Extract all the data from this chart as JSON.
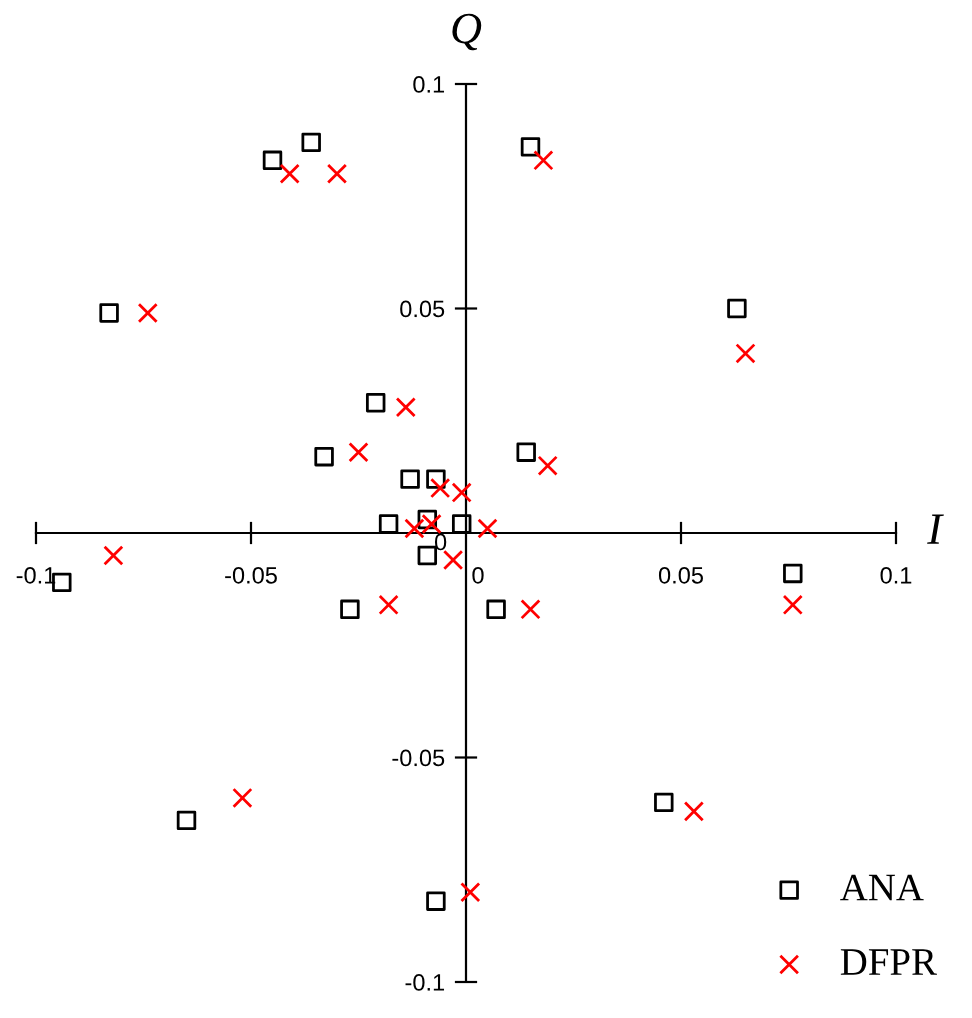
{
  "chart_data": {
    "type": "scatter",
    "xlabel": "I",
    "ylabel": "Q",
    "xlim": [
      -0.1,
      0.1
    ],
    "ylim": [
      -0.1,
      0.1
    ],
    "xticks": [
      -0.1,
      -0.05,
      0,
      0.05,
      0.1
    ],
    "yticks": [
      -0.1,
      -0.05,
      0,
      0.05,
      0.1
    ],
    "grid": false,
    "legend": "bottom right",
    "series": [
      {
        "name": "ANA",
        "color": "#000000",
        "marker": "square",
        "x": [
          -0.045,
          -0.036,
          -0.083,
          -0.021,
          -0.033,
          -0.013,
          -0.007,
          -0.018,
          -0.009,
          -0.001,
          0.015,
          0.063,
          0.014,
          -0.009,
          -0.027,
          -0.094,
          -0.065,
          -0.007,
          0.007,
          0.076,
          0.046
        ],
        "values": [
          0.083,
          0.087,
          0.049,
          0.029,
          0.017,
          0.012,
          0.012,
          0.002,
          0.003,
          0.002,
          0.086,
          0.05,
          0.018,
          -0.005,
          -0.017,
          -0.011,
          -0.064,
          -0.082,
          -0.017,
          -0.009,
          -0.06
        ]
      },
      {
        "name": "DFPR",
        "color": "#ff0000",
        "marker": "cross",
        "x": [
          -0.041,
          -0.03,
          -0.074,
          -0.014,
          -0.025,
          -0.006,
          -0.001,
          -0.008,
          -0.012,
          0.005,
          0.018,
          0.065,
          0.019,
          -0.003,
          -0.018,
          -0.082,
          -0.052,
          0.001,
          0.015,
          0.076,
          0.053
        ],
        "values": [
          0.08,
          0.08,
          0.049,
          0.028,
          0.018,
          0.01,
          0.009,
          0.002,
          0.001,
          0.001,
          0.083,
          0.04,
          0.015,
          -0.006,
          -0.016,
          -0.005,
          -0.059,
          -0.08,
          -0.017,
          -0.016,
          -0.062
        ]
      }
    ]
  }
}
